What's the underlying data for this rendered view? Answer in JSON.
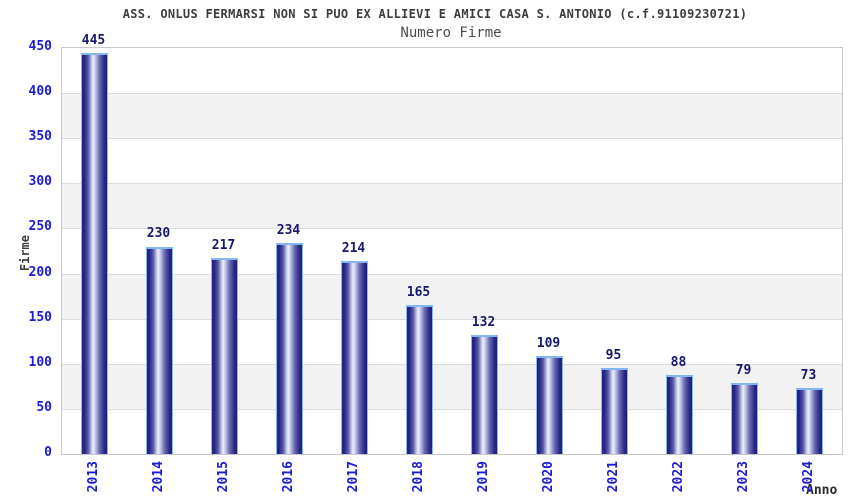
{
  "header": {
    "title": "ASS. ONLUS FERMARSI NON SI PUO EX ALLIEVI E AMICI CASA S. ANTONIO (c.f.91109230721)",
    "subtitle": "Numero Firme"
  },
  "chart_data": {
    "type": "bar",
    "title": "Numero Firme",
    "xlabel": "Anno",
    "ylabel": "Firme",
    "categories": [
      "2013",
      "2014",
      "2015",
      "2016",
      "2017",
      "2018",
      "2019",
      "2020",
      "2021",
      "2022",
      "2023",
      "2024"
    ],
    "values": [
      445,
      230,
      217,
      234,
      214,
      165,
      132,
      109,
      95,
      88,
      79,
      73
    ],
    "ylim": [
      0,
      450
    ],
    "ytick_step": 50,
    "yticks": [
      0,
      50,
      100,
      150,
      200,
      250,
      300,
      350,
      400,
      450
    ],
    "grid": "horizontal-bands-alternating",
    "legend": "none",
    "colors": {
      "tick_label": "#1b1bd4",
      "value_label": "#17176e",
      "bar_dark": "#22227e",
      "bar_light": "#eef0fa",
      "bar_border": "#8fb4ea",
      "bar_top_cap": "#84b6f2",
      "band_fill": "#f2f2f2",
      "gridline": "#dcdcdc",
      "plot_border": "#c9c9c9",
      "title_text": "#3c3c3c"
    }
  }
}
